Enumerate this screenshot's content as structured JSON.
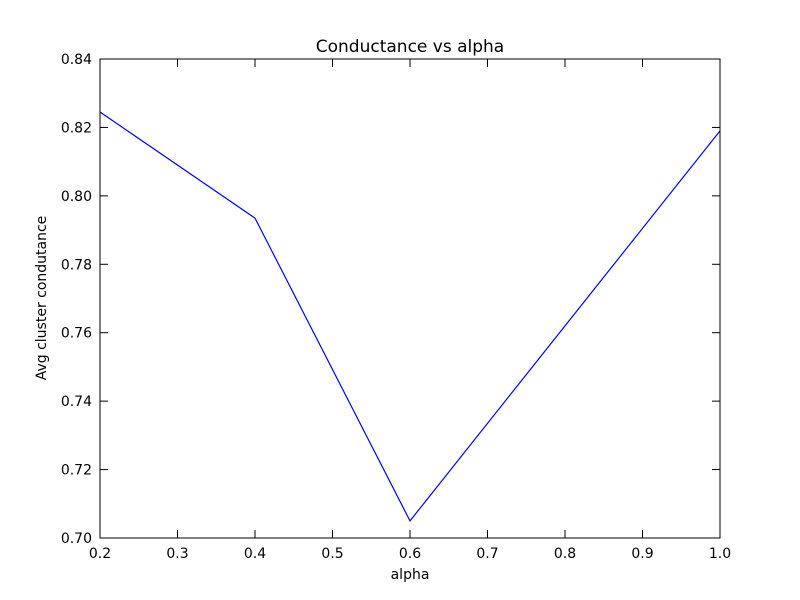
{
  "chart_data": {
    "type": "line",
    "title": "Conductance vs alpha",
    "xlabel": "alpha",
    "ylabel": "Avg cluster condutance",
    "xlim": [
      0.2,
      1.0
    ],
    "ylim": [
      0.7,
      0.84
    ],
    "grid": false,
    "xticks": [
      "0.2",
      "0.3",
      "0.4",
      "0.5",
      "0.6",
      "0.7",
      "0.8",
      "0.9",
      "1.0"
    ],
    "yticks": [
      "0.70",
      "0.72",
      "0.74",
      "0.76",
      "0.78",
      "0.80",
      "0.82",
      "0.84"
    ],
    "series": [
      {
        "color": "#0000ff",
        "x": [
          0.2,
          0.4,
          0.6,
          1.0
        ],
        "y": [
          0.8245,
          0.7935,
          0.705,
          0.819
        ]
      }
    ]
  }
}
